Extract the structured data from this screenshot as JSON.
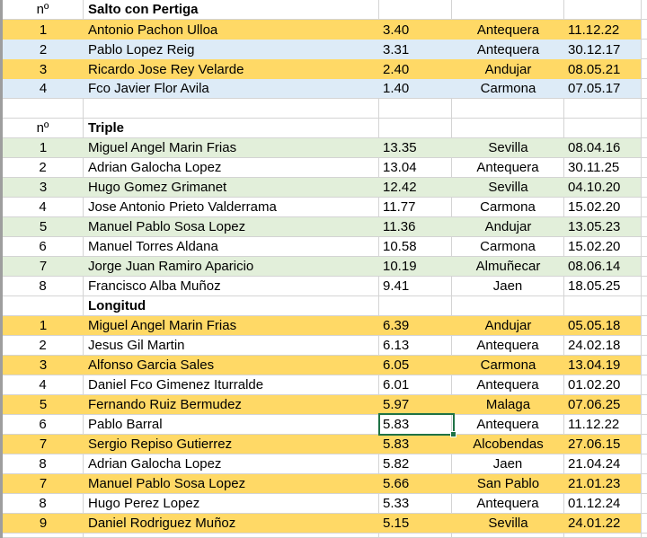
{
  "app": {
    "kind": "spreadsheet-grid"
  },
  "colors": {
    "row_yellow": "#FFD966",
    "row_blue": "#DDEBF7",
    "row_green": "#E2EFDA",
    "row_white": "#FFFFFF",
    "gridline": "#D4D4D4",
    "selection_border": "#1F7245",
    "edge_band": "#9E9E9E"
  },
  "selection": {
    "row_name": "Pablo Barral",
    "column": "mark",
    "value": "5.83"
  },
  "sections": [
    {
      "num_header": "nº",
      "title": "Salto con Pertiga",
      "gap_after": true,
      "rows": [
        {
          "n": "1",
          "name": "Antonio Pachon Ulloa",
          "mark": "3.40",
          "city": "Antequera",
          "date": "11.12.22",
          "fill": "yellow"
        },
        {
          "n": "2",
          "name": "Pablo Lopez Reig",
          "mark": "3.31",
          "city": "Antequera",
          "date": "30.12.17",
          "fill": "blue"
        },
        {
          "n": "3",
          "name": "Ricardo Jose Rey Velarde",
          "mark": "2.40",
          "city": "Andujar",
          "date": "08.05.21",
          "fill": "yellow"
        },
        {
          "n": "4",
          "name": "Fco Javier Flor Avila",
          "mark": "1.40",
          "city": "Carmona",
          "date": "07.05.17",
          "fill": "blue"
        }
      ]
    },
    {
      "num_header": "nº",
      "title": "Triple",
      "gap_after": false,
      "rows": [
        {
          "n": "1",
          "name": "Miguel Angel Marin Frias",
          "mark": "13.35",
          "city": "Sevilla",
          "date": "08.04.16",
          "fill": "green"
        },
        {
          "n": "2",
          "name": "Adrian Galocha Lopez",
          "mark": "13.04",
          "city": "Antequera",
          "date": "30.11.25",
          "fill": "white"
        },
        {
          "n": "3",
          "name": "Hugo Gomez Grimanet",
          "mark": "12.42",
          "city": "Sevilla",
          "date": "04.10.20",
          "fill": "green"
        },
        {
          "n": "4",
          "name": "Jose Antonio Prieto Valderrama",
          "mark": "11.77",
          "city": "Carmona",
          "date": "15.02.20",
          "fill": "white"
        },
        {
          "n": "5",
          "name": "Manuel Pablo Sosa Lopez",
          "mark": "11.36",
          "city": "Andujar",
          "date": "13.05.23",
          "fill": "green"
        },
        {
          "n": "6",
          "name": "Manuel Torres Aldana",
          "mark": "10.58",
          "city": "Carmona",
          "date": "15.02.20",
          "fill": "white"
        },
        {
          "n": "7",
          "name": "Jorge Juan Ramiro Aparicio",
          "mark": "10.19",
          "city": "Almuñecar",
          "date": "08.06.14",
          "fill": "green"
        },
        {
          "n": "8",
          "name": "Francisco Alba Muñoz",
          "mark": "9.41",
          "city": "Jaen",
          "date": "18.05.25",
          "fill": "white"
        }
      ]
    },
    {
      "num_header": "",
      "title": "Longitud",
      "gap_after": false,
      "rows": [
        {
          "n": "1",
          "name": "Miguel Angel Marin Frias",
          "mark": "6.39",
          "city": "Andujar",
          "date": "05.05.18",
          "fill": "yellow"
        },
        {
          "n": "2",
          "name": "Jesus Gil Martin",
          "mark": "6.13",
          "city": "Antequera",
          "date": "24.02.18",
          "fill": "white"
        },
        {
          "n": "3",
          "name": "Alfonso Garcia Sales",
          "mark": "6.05",
          "city": "Carmona",
          "date": "13.04.19",
          "fill": "yellow"
        },
        {
          "n": "4",
          "name": "Daniel Fco Gimenez Iturralde",
          "mark": "6.01",
          "city": "Antequera",
          "date": "01.02.20",
          "fill": "white"
        },
        {
          "n": "5",
          "name": "Fernando Ruiz Bermudez",
          "mark": "5.97",
          "city": "Malaga",
          "date": "07.06.25",
          "fill": "yellow"
        },
        {
          "n": "6",
          "name": "Pablo Barral",
          "mark": "5.83",
          "city": "Antequera",
          "date": "11.12.22",
          "fill": "white",
          "selected": true
        },
        {
          "n": "7",
          "name": "Sergio Repiso Gutierrez",
          "mark": "5.83",
          "city": "Alcobendas",
          "date": "27.06.15",
          "fill": "yellow"
        },
        {
          "n": "8",
          "name": "Adrian Galocha Lopez",
          "mark": "5.82",
          "city": "Jaen",
          "date": "21.04.24",
          "fill": "white"
        },
        {
          "n": "7",
          "name": "Manuel Pablo Sosa Lopez",
          "mark": "5.66",
          "city": "San Pablo",
          "date": "21.01.23",
          "fill": "yellow"
        },
        {
          "n": "8",
          "name": "Hugo Perez Lopez",
          "mark": "5.33",
          "city": "Antequera",
          "date": "01.12.24",
          "fill": "white"
        },
        {
          "n": "9",
          "name": "Daniel Rodriguez Muñoz",
          "mark": "5.15",
          "city": "Sevilla",
          "date": "24.01.22",
          "fill": "yellow"
        }
      ]
    }
  ]
}
